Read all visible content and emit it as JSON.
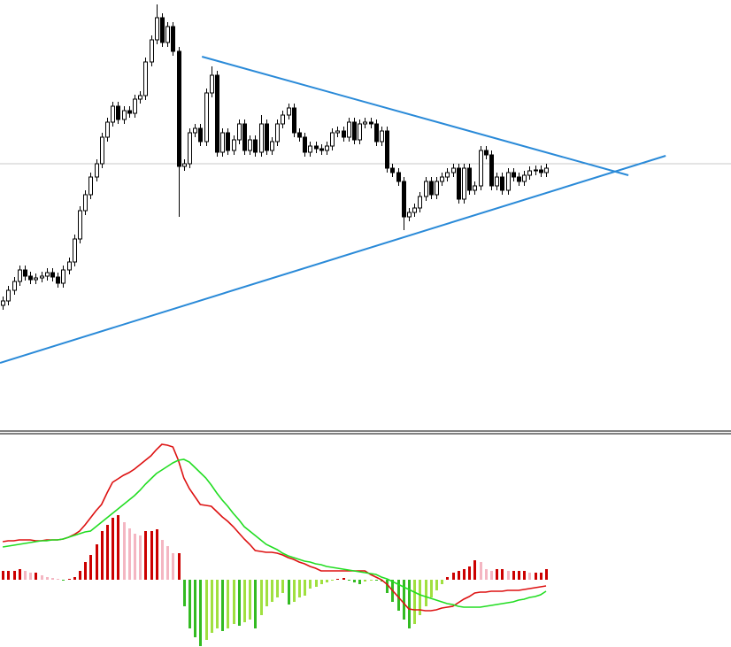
{
  "chart_data": [
    {
      "type": "candlestick",
      "xlim": [
        -0.5,
        132.7
      ],
      "ylim": [
        0,
        480
      ],
      "up_color": "#ffffff",
      "down_color": "#000000",
      "wick_color": "#000000",
      "reference_line": {
        "value": 295,
        "color": "#c8c8c8"
      },
      "trendlines": [
        {
          "x": [
            36.3,
            114
          ],
          "y": [
            416,
            282
          ],
          "color": "#2a8ad8"
        },
        {
          "x": [
            -0.5,
            120.8
          ],
          "y": [
            70,
            304
          ],
          "color": "#2a8ad8"
        }
      ],
      "open": [
        135,
        140,
        152,
        162,
        175,
        168,
        164,
        166,
        168,
        172,
        167,
        160,
        175,
        184,
        210,
        242,
        260,
        280,
        295,
        325,
        342,
        360,
        345,
        355,
        352,
        368,
        372,
        410,
        435,
        460,
        432,
        450,
        422,
        292,
        295,
        330,
        335,
        320,
        375,
        395,
        308,
        330,
        310,
        322,
        340,
        310,
        322,
        308,
        340,
        310,
        320,
        340,
        350,
        358,
        330,
        325,
        308,
        315,
        312,
        310,
        315,
        330,
        332,
        325,
        342,
        322,
        340,
        342,
        340,
        320,
        332,
        290,
        285,
        275,
        235,
        240,
        245,
        258,
        275,
        260,
        275,
        280,
        285,
        290,
        255,
        290,
        265,
        270,
        310,
        305,
        270,
        280,
        265,
        285,
        280,
        275,
        282,
        287,
        288,
        285
      ],
      "high": [
        145,
        157,
        167,
        180,
        180,
        173,
        171,
        173,
        177,
        177,
        172,
        180,
        189,
        215,
        247,
        265,
        285,
        300,
        330,
        347,
        365,
        365,
        360,
        360,
        373,
        377,
        415,
        440,
        475,
        465,
        455,
        455,
        427,
        300,
        335,
        340,
        340,
        380,
        405,
        400,
        335,
        335,
        327,
        345,
        345,
        327,
        327,
        350,
        345,
        325,
        345,
        355,
        363,
        363,
        335,
        330,
        320,
        320,
        317,
        320,
        335,
        337,
        337,
        347,
        347,
        345,
        347,
        347,
        345,
        337,
        337,
        295,
        290,
        280,
        245,
        250,
        263,
        280,
        280,
        280,
        285,
        290,
        295,
        295,
        295,
        295,
        275,
        315,
        315,
        310,
        285,
        285,
        290,
        290,
        285,
        287,
        292,
        293,
        293,
        295
      ],
      "low": [
        130,
        135,
        147,
        157,
        163,
        159,
        159,
        161,
        163,
        162,
        155,
        155,
        170,
        179,
        205,
        237,
        255,
        275,
        290,
        320,
        337,
        340,
        340,
        347,
        347,
        363,
        367,
        405,
        430,
        427,
        427,
        417,
        235,
        287,
        290,
        325,
        315,
        315,
        370,
        303,
        303,
        305,
        305,
        317,
        305,
        305,
        303,
        303,
        305,
        305,
        315,
        335,
        345,
        325,
        320,
        303,
        303,
        307,
        305,
        305,
        310,
        325,
        320,
        320,
        317,
        317,
        335,
        335,
        315,
        315,
        285,
        280,
        270,
        220,
        230,
        235,
        240,
        253,
        255,
        255,
        270,
        275,
        280,
        250,
        250,
        260,
        260,
        265,
        300,
        265,
        265,
        260,
        260,
        275,
        270,
        270,
        277,
        282,
        280,
        280
      ],
      "close": [
        140,
        152,
        162,
        175,
        168,
        164,
        166,
        168,
        172,
        167,
        160,
        175,
        184,
        210,
        242,
        260,
        280,
        295,
        325,
        342,
        360,
        345,
        355,
        352,
        368,
        372,
        410,
        435,
        460,
        432,
        450,
        422,
        292,
        295,
        330,
        335,
        320,
        375,
        395,
        308,
        330,
        310,
        322,
        340,
        310,
        322,
        308,
        340,
        310,
        320,
        340,
        350,
        358,
        330,
        325,
        308,
        315,
        312,
        310,
        315,
        330,
        332,
        325,
        342,
        322,
        340,
        342,
        340,
        320,
        332,
        290,
        285,
        275,
        235,
        240,
        245,
        258,
        275,
        260,
        275,
        280,
        285,
        290,
        255,
        290,
        265,
        270,
        310,
        305,
        270,
        280,
        265,
        285,
        280,
        275,
        282,
        287,
        288,
        285,
        290
      ]
    },
    {
      "type": "macd",
      "xlim": [
        -0.5,
        132.7
      ],
      "ylim": [
        -76,
        165
      ],
      "histogram": {
        "values": [
          10,
          10,
          10,
          12,
          10,
          8,
          8,
          5,
          3,
          2,
          1,
          -1,
          1,
          3,
          10,
          20,
          28,
          40,
          55,
          62,
          70,
          73,
          65,
          58,
          52,
          50,
          55,
          55,
          57,
          45,
          38,
          30,
          30,
          -30,
          -55,
          -65,
          -75,
          -68,
          -60,
          -55,
          -58,
          -55,
          -50,
          -52,
          -48,
          -45,
          -55,
          -40,
          -30,
          -25,
          -20,
          -15,
          -28,
          -25,
          -20,
          -18,
          -10,
          -8,
          -5,
          -3,
          -1,
          1,
          2,
          -1,
          -3,
          -5,
          -2,
          -1,
          -1,
          -2,
          -15,
          -25,
          -35,
          -45,
          -55,
          -50,
          -40,
          -30,
          -20,
          -12,
          -5,
          3,
          8,
          10,
          12,
          15,
          22,
          20,
          12,
          10,
          12,
          12,
          10,
          10,
          10,
          10,
          8,
          8,
          8,
          12
        ],
        "colors": [
          "#cc0000",
          "#f4b6c2",
          "#33bb22",
          "#a0e040"
        ]
      },
      "series": [
        {
          "color": "#dd1111",
          "values": [
            43,
            44,
            44,
            45,
            45,
            45,
            44,
            44,
            45,
            45,
            45,
            46,
            48,
            51,
            55,
            62,
            70,
            78,
            85,
            98,
            110,
            114,
            118,
            121,
            125,
            130,
            135,
            140,
            147,
            153,
            152,
            150,
            135,
            115,
            103,
            94,
            85,
            84,
            83,
            77,
            71,
            66,
            60,
            53,
            46,
            40,
            33,
            32,
            31,
            31,
            30,
            28,
            25,
            23,
            20,
            18,
            15,
            13,
            10,
            10,
            10,
            10,
            10,
            10,
            10,
            10,
            10,
            6,
            3,
            0,
            -5,
            -12,
            -19,
            -26,
            -33,
            -34,
            -34,
            -35,
            -35,
            -34,
            -32,
            -31,
            -30,
            -26,
            -22,
            -19,
            -15,
            -14,
            -14,
            -13,
            -13,
            -13,
            -12,
            -12,
            -12,
            -11,
            -10,
            -9,
            -8,
            -7
          ]
        },
        {
          "color": "#22dd22",
          "values": [
            37,
            38,
            39,
            40,
            41,
            42,
            43,
            44,
            44,
            45,
            45,
            46,
            48,
            50,
            52,
            54,
            55,
            60,
            65,
            70,
            75,
            80,
            85,
            90,
            95,
            101,
            108,
            114,
            120,
            124,
            128,
            132,
            135,
            136,
            133,
            127,
            121,
            115,
            107,
            98,
            90,
            83,
            75,
            68,
            60,
            55,
            50,
            45,
            40,
            37,
            34,
            30,
            27,
            25,
            23,
            21,
            20,
            18,
            17,
            15,
            14,
            13,
            12,
            11,
            10,
            9,
            8,
            7,
            6,
            3,
            1,
            -2,
            -5,
            -8,
            -11,
            -14,
            -17,
            -19,
            -21,
            -23,
            -25,
            -27,
            -28,
            -30,
            -31,
            -31,
            -31,
            -31,
            -30,
            -29,
            -28,
            -27,
            -26,
            -25,
            -23,
            -22,
            -20,
            -19,
            -17,
            -13
          ]
        }
      ]
    }
  ]
}
